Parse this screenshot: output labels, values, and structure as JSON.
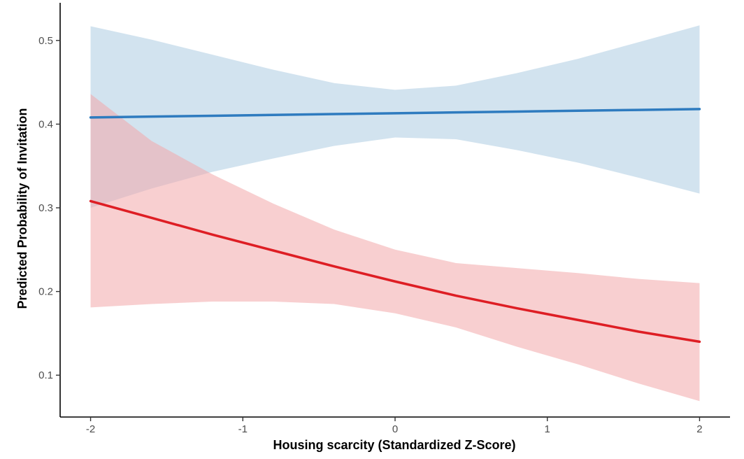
{
  "chart_data": {
    "type": "line",
    "title": "",
    "xlabel": "Housing scarcity (Standardized Z-Score)",
    "ylabel": "Predicted Probability of Invitation",
    "xlim": [
      -2.2,
      2.2
    ],
    "ylim": [
      0.05,
      0.545
    ],
    "xticks": [
      -2,
      -1,
      0,
      1,
      2
    ],
    "xtick_labels": [
      "-2",
      "-1",
      "0",
      "1",
      "2"
    ],
    "yticks": [
      0.1,
      0.2,
      0.3,
      0.4,
      0.5
    ],
    "ytick_labels": [
      "0.1",
      "0.2",
      "0.3",
      "0.4",
      "0.5"
    ],
    "grid": false,
    "legend": "none",
    "series": [
      {
        "color": "#2e7bbf",
        "band_color": "#a6c8e0",
        "band_opacity": 0.5,
        "x": [
          -2,
          -1.6,
          -1.2,
          -0.8,
          -0.4,
          0,
          0.4,
          0.8,
          1.2,
          1.6,
          2
        ],
        "y": [
          0.408,
          0.409,
          0.41,
          0.411,
          0.412,
          0.413,
          0.414,
          0.415,
          0.416,
          0.417,
          0.418
        ],
        "lower": [
          0.3,
          0.323,
          0.343,
          0.359,
          0.374,
          0.384,
          0.382,
          0.369,
          0.354,
          0.336,
          0.317
        ],
        "upper": [
          0.517,
          0.501,
          0.483,
          0.465,
          0.449,
          0.441,
          0.446,
          0.461,
          0.478,
          0.498,
          0.518
        ]
      },
      {
        "color": "#de1e24",
        "band_color": "#f2a8aa",
        "band_opacity": 0.55,
        "x": [
          -2,
          -1.6,
          -1.2,
          -0.8,
          -0.4,
          0,
          0.4,
          0.8,
          1.2,
          1.6,
          2
        ],
        "y": [
          0.308,
          0.288,
          0.268,
          0.249,
          0.23,
          0.212,
          0.195,
          0.18,
          0.166,
          0.152,
          0.14
        ],
        "lower": [
          0.181,
          0.185,
          0.188,
          0.188,
          0.185,
          0.174,
          0.157,
          0.134,
          0.113,
          0.09,
          0.069
        ],
        "upper": [
          0.436,
          0.38,
          0.34,
          0.305,
          0.274,
          0.25,
          0.234,
          0.228,
          0.222,
          0.215,
          0.21
        ]
      }
    ]
  }
}
